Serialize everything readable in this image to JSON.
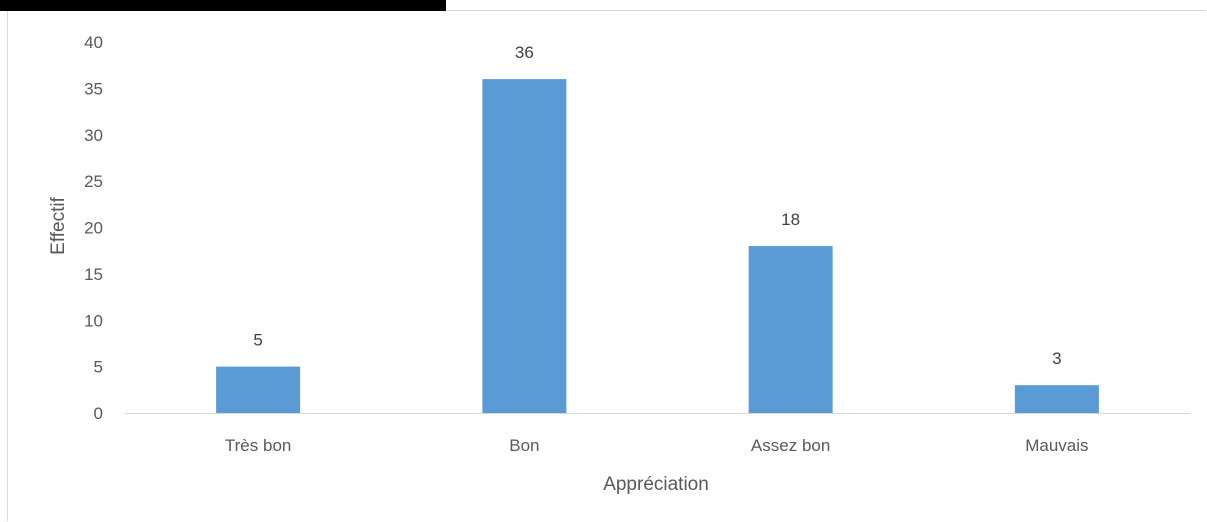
{
  "chart_data": {
    "type": "bar",
    "categories": [
      "Très bon",
      "Bon",
      "Assez bon",
      "Mauvais"
    ],
    "values": [
      5,
      36,
      18,
      3
    ],
    "data_labels": [
      "5",
      "36",
      "18",
      "3"
    ],
    "title": "",
    "xlabel": "Appréciation",
    "ylabel": "Effectif",
    "ylim": [
      0,
      40
    ],
    "yticks": [
      0,
      5,
      10,
      15,
      20,
      25,
      30,
      35,
      40
    ],
    "grid": false,
    "legend": "none",
    "bar_color": "#5b9bd5",
    "axis_color": "#d9d9d9",
    "text_color": "#595959"
  }
}
